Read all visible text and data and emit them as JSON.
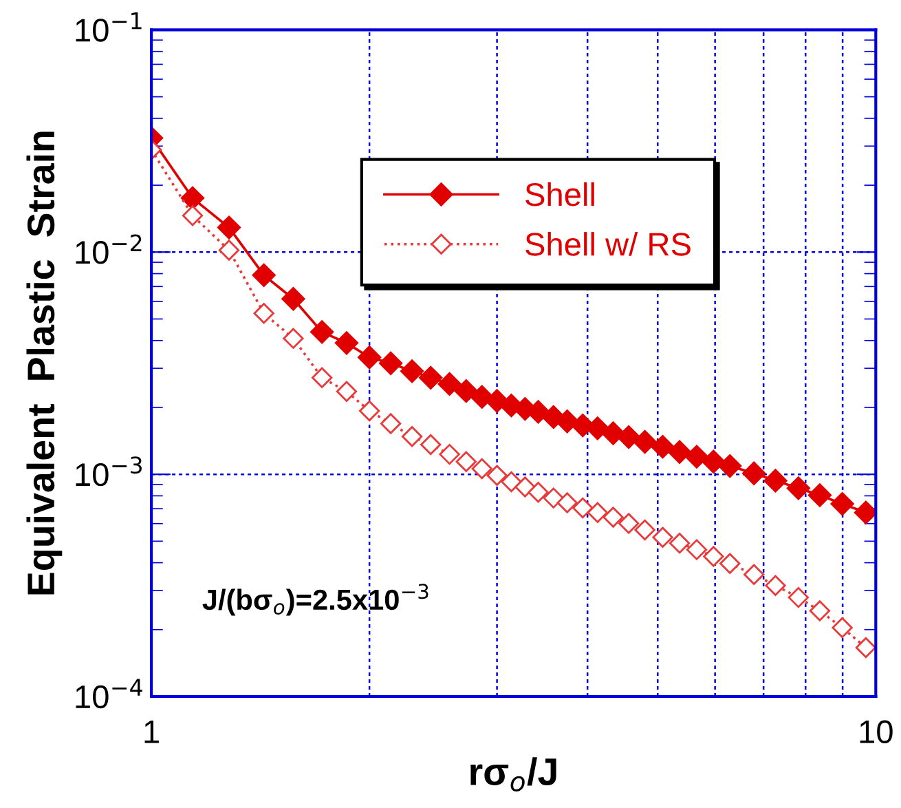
{
  "chart_data": {
    "type": "line",
    "xlabel": "rσ$_{o}$/J",
    "ylabel": "Equivalent  Plastic  Strain",
    "log": "xy",
    "xlim": [
      1,
      10
    ],
    "ylim": [
      0.0001,
      0.1
    ],
    "xticks": [
      1,
      {
        "value": 2,
        "label": null
      },
      {
        "value": 3,
        "label": null
      },
      {
        "value": 4,
        "label": null
      },
      {
        "value": 5,
        "label": null
      },
      {
        "value": 6,
        "label": null
      },
      {
        "value": 7,
        "label": null
      },
      {
        "value": 8,
        "label": null
      },
      {
        "value": 9,
        "label": null
      },
      10
    ],
    "yticks": [
      {
        "value": 0.0001,
        "label": "10$^{−4}$"
      },
      {
        "value": 0.001,
        "label": "10$^{−3}$"
      },
      {
        "value": 0.01,
        "label": "10$^{−2}$"
      },
      {
        "value": 0.1,
        "label": "10$^{−1}$"
      }
    ],
    "grid": true,
    "legend": "top right",
    "x": [
      1.0,
      1.14,
      1.28,
      1.43,
      1.57,
      1.72,
      1.86,
      2.0,
      2.14,
      2.29,
      2.43,
      2.58,
      2.72,
      2.86,
      3.0,
      3.14,
      3.28,
      3.42,
      3.59,
      3.75,
      3.94,
      4.13,
      4.34,
      4.56,
      4.8,
      5.08,
      5.36,
      5.66,
      5.97,
      6.29,
      6.79,
      7.27,
      7.82,
      8.37,
      8.99,
      9.69
    ],
    "series": [
      {
        "name": "Shell",
        "color": "#e00000",
        "marker": "diamond",
        "line_style": "solid",
        "values": [
          0.0326,
          0.0175,
          0.0129,
          0.00787,
          0.00616,
          0.00437,
          0.0039,
          0.00336,
          0.00316,
          0.00291,
          0.00272,
          0.00255,
          0.00237,
          0.00223,
          0.00214,
          0.00204,
          0.00197,
          0.00191,
          0.00181,
          0.00173,
          0.00166,
          0.00161,
          0.00153,
          0.00147,
          0.0014,
          0.00133,
          0.00126,
          0.0012,
          0.00114,
          0.00109,
          0.00101,
          0.000936,
          0.000866,
          0.000805,
          0.000736,
          0.000673
        ]
      },
      {
        "name": "Shell w/ RS",
        "color": "#e83a3a",
        "marker": "diamond_open",
        "line_style": "dotted",
        "values": [
          0.0289,
          0.0146,
          0.0102,
          0.0053,
          0.00409,
          0.00272,
          0.00236,
          0.00193,
          0.00169,
          0.00148,
          0.00136,
          0.00123,
          0.00114,
          0.00106,
          0.000988,
          0.000925,
          0.000877,
          0.00083,
          0.000782,
          0.000745,
          0.000706,
          0.000673,
          0.000641,
          0.000601,
          0.000562,
          0.00052,
          0.00049,
          0.000458,
          0.000427,
          0.000397,
          0.000354,
          0.000316,
          0.000279,
          0.000243,
          0.000204,
          0.000166
        ]
      }
    ],
    "annotations": [
      "J/(bσ$_{o}$)=2.5x10$^{−3}$"
    ]
  }
}
